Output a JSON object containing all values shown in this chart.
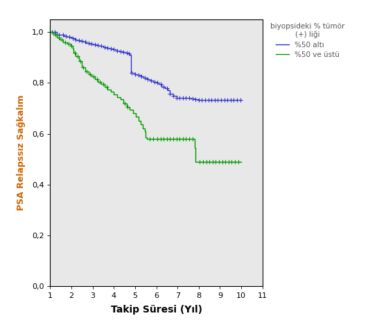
{
  "title": "",
  "xlabel": "Takip Süresi (Yıl)",
  "ylabel": "PSA Relapssız Sağkalım",
  "legend_title": "biyopsideki % tümör\n(+) liği",
  "legend_labels": [
    "%50 altı",
    "%50 ve üstü"
  ],
  "blue_color": "#3333cc",
  "green_color": "#009900",
  "ylabel_color": "#cc6600",
  "xlim": [
    1,
    11
  ],
  "ylim": [
    0.0,
    1.05
  ],
  "xticks": [
    1,
    2,
    3,
    4,
    5,
    6,
    7,
    8,
    9,
    10,
    11
  ],
  "yticks": [
    0.0,
    0.2,
    0.4,
    0.6,
    0.8,
    1.0
  ],
  "background_color": "#e8e8e8",
  "blue_steps": [
    [
      1.0,
      1.0
    ],
    [
      1.15,
      1.0
    ],
    [
      1.3,
      0.99
    ],
    [
      1.5,
      0.99
    ],
    [
      1.65,
      0.985
    ],
    [
      1.8,
      0.982
    ],
    [
      1.95,
      0.978
    ],
    [
      2.05,
      0.975
    ],
    [
      2.15,
      0.972
    ],
    [
      2.25,
      0.968
    ],
    [
      2.4,
      0.965
    ],
    [
      2.55,
      0.962
    ],
    [
      2.7,
      0.958
    ],
    [
      2.85,
      0.955
    ],
    [
      3.0,
      0.952
    ],
    [
      3.15,
      0.948
    ],
    [
      3.3,
      0.945
    ],
    [
      3.5,
      0.942
    ],
    [
      3.65,
      0.938
    ],
    [
      3.8,
      0.935
    ],
    [
      3.95,
      0.932
    ],
    [
      4.1,
      0.928
    ],
    [
      4.25,
      0.925
    ],
    [
      4.4,
      0.922
    ],
    [
      4.55,
      0.918
    ],
    [
      4.7,
      0.915
    ],
    [
      4.75,
      0.912
    ],
    [
      4.8,
      0.84
    ],
    [
      5.0,
      0.835
    ],
    [
      5.1,
      0.83
    ],
    [
      5.25,
      0.825
    ],
    [
      5.4,
      0.82
    ],
    [
      5.55,
      0.815
    ],
    [
      5.7,
      0.81
    ],
    [
      5.85,
      0.805
    ],
    [
      6.0,
      0.8
    ],
    [
      6.1,
      0.795
    ],
    [
      6.25,
      0.785
    ],
    [
      6.4,
      0.778
    ],
    [
      6.55,
      0.77
    ],
    [
      6.65,
      0.758
    ],
    [
      6.8,
      0.748
    ],
    [
      6.95,
      0.742
    ],
    [
      7.0,
      0.74
    ],
    [
      7.2,
      0.74
    ],
    [
      7.4,
      0.74
    ],
    [
      7.6,
      0.738
    ],
    [
      7.8,
      0.736
    ],
    [
      8.0,
      0.734
    ],
    [
      8.2,
      0.734
    ],
    [
      8.4,
      0.734
    ],
    [
      8.6,
      0.734
    ],
    [
      8.8,
      0.734
    ],
    [
      9.0,
      0.734
    ],
    [
      9.2,
      0.734
    ],
    [
      9.4,
      0.734
    ],
    [
      9.6,
      0.734
    ],
    [
      9.8,
      0.734
    ],
    [
      10.0,
      0.734
    ]
  ],
  "green_steps": [
    [
      1.0,
      1.0
    ],
    [
      1.15,
      0.99
    ],
    [
      1.3,
      0.98
    ],
    [
      1.45,
      0.97
    ],
    [
      1.6,
      0.96
    ],
    [
      1.8,
      0.955
    ],
    [
      1.95,
      0.945
    ],
    [
      2.05,
      0.935
    ],
    [
      2.1,
      0.92
    ],
    [
      2.2,
      0.905
    ],
    [
      2.35,
      0.885
    ],
    [
      2.5,
      0.862
    ],
    [
      2.65,
      0.845
    ],
    [
      2.8,
      0.835
    ],
    [
      2.95,
      0.825
    ],
    [
      3.1,
      0.815
    ],
    [
      3.25,
      0.805
    ],
    [
      3.4,
      0.795
    ],
    [
      3.55,
      0.785
    ],
    [
      3.7,
      0.775
    ],
    [
      3.85,
      0.765
    ],
    [
      4.0,
      0.755
    ],
    [
      4.15,
      0.745
    ],
    [
      4.3,
      0.735
    ],
    [
      4.45,
      0.72
    ],
    [
      4.6,
      0.705
    ],
    [
      4.75,
      0.695
    ],
    [
      4.9,
      0.68
    ],
    [
      5.05,
      0.668
    ],
    [
      5.15,
      0.652
    ],
    [
      5.25,
      0.638
    ],
    [
      5.35,
      0.622
    ],
    [
      5.45,
      0.61
    ],
    [
      5.5,
      0.585
    ],
    [
      5.55,
      0.58
    ],
    [
      5.7,
      0.58
    ],
    [
      5.85,
      0.58
    ],
    [
      6.0,
      0.58
    ],
    [
      6.2,
      0.58
    ],
    [
      6.4,
      0.58
    ],
    [
      6.6,
      0.58
    ],
    [
      6.8,
      0.58
    ],
    [
      7.0,
      0.58
    ],
    [
      7.2,
      0.58
    ],
    [
      7.4,
      0.58
    ],
    [
      7.6,
      0.58
    ],
    [
      7.8,
      0.545
    ],
    [
      7.85,
      0.49
    ],
    [
      8.0,
      0.49
    ],
    [
      8.2,
      0.49
    ],
    [
      8.4,
      0.49
    ],
    [
      8.6,
      0.49
    ],
    [
      8.8,
      0.49
    ],
    [
      9.0,
      0.49
    ],
    [
      9.2,
      0.49
    ],
    [
      9.4,
      0.49
    ],
    [
      9.6,
      0.49
    ],
    [
      9.8,
      0.49
    ],
    [
      10.0,
      0.49
    ]
  ],
  "blue_censors": [
    1.2,
    1.4,
    1.6,
    1.75,
    1.9,
    2.05,
    2.2,
    2.35,
    2.5,
    2.65,
    2.8,
    2.95,
    3.1,
    3.25,
    3.4,
    3.55,
    3.7,
    3.85,
    4.0,
    4.15,
    4.3,
    4.45,
    4.6,
    4.72,
    4.85,
    5.0,
    5.15,
    5.3,
    5.45,
    5.6,
    5.75,
    5.9,
    6.05,
    6.2,
    6.35,
    6.5,
    6.65,
    6.8,
    6.95,
    7.1,
    7.25,
    7.4,
    7.55,
    7.7,
    7.85,
    8.0,
    8.15,
    8.3,
    8.45,
    8.6,
    8.75,
    8.9,
    9.05,
    9.2,
    9.35,
    9.5,
    9.65,
    9.8,
    9.95
  ],
  "green_censors": [
    1.1,
    1.25,
    1.4,
    1.55,
    1.7,
    1.88,
    2.0,
    2.15,
    2.28,
    2.42,
    2.56,
    2.72,
    2.88,
    3.05,
    3.2,
    3.35,
    3.5,
    3.65,
    4.5,
    4.65,
    5.7,
    5.85,
    6.05,
    6.2,
    6.35,
    6.5,
    6.65,
    6.8,
    6.95,
    7.1,
    7.25,
    7.4,
    7.55,
    7.7,
    8.05,
    8.2,
    8.35,
    8.5,
    8.65,
    8.8,
    8.95,
    9.1,
    9.25,
    9.4,
    9.55,
    9.7,
    9.85
  ]
}
